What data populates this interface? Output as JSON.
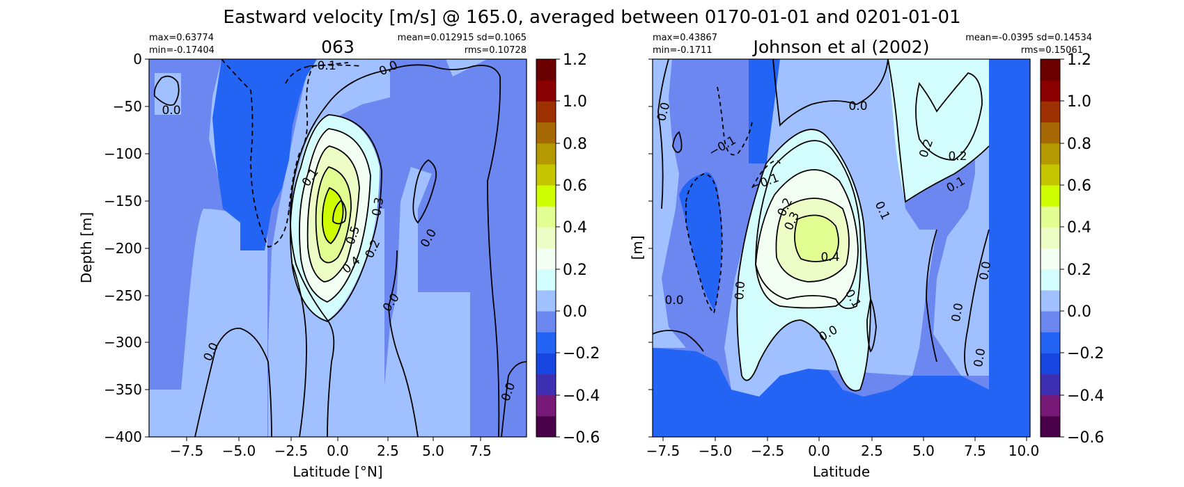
{
  "suptitle": "Eastward velocity [m/s] @ 165.0, averaged between 0170-01-01 and 0201-01-01",
  "colormap": {
    "levels": [
      -0.6,
      -0.5,
      -0.4,
      -0.3,
      -0.2,
      -0.1,
      0.0,
      0.1,
      0.2,
      0.3,
      0.4,
      0.5,
      0.6,
      0.7,
      0.8,
      0.9,
      1.0,
      1.1,
      1.2
    ],
    "colors": [
      "#4a0048",
      "#771a77",
      "#3f2fb3",
      "#1746e0",
      "#2464f5",
      "#6c87f0",
      "#a0c0ff",
      "#d4fdfd",
      "#f4fff4",
      "#eefdc6",
      "#e2fd92",
      "#cefe00",
      "#c6c600",
      "#b49a00",
      "#a76806",
      "#9c3000",
      "#8a0000",
      "#6a0000"
    ],
    "tick_labels": [
      "1.2",
      "1.0",
      "0.8",
      "0.6",
      "0.4",
      "0.2",
      "0.0",
      "−0.2",
      "−0.4",
      "−0.6"
    ]
  },
  "chart_data": [
    {
      "type": "heatmap",
      "title": "063",
      "stats_left": [
        "max=0.63774",
        "min=-0.17404"
      ],
      "stats_right": [
        "mean=0.012915 sd=0.1065",
        "rms=0.10728"
      ],
      "xlabel": "Latitude [°N]",
      "ylabel": "Depth [m]",
      "xlim": [
        -10,
        10
      ],
      "ylim": [
        -400,
        0
      ],
      "x_ticks": [
        "−7.5",
        "−5.0",
        "−2.5",
        "0.0",
        "2.5",
        "5.0",
        "7.5"
      ],
      "y_ticks": [
        "0",
        "−50",
        "−100",
        "−150",
        "−200",
        "−250",
        "−300",
        "−350",
        "−400"
      ],
      "contour_labels": [
        "−0.1",
        "0.0",
        "0.0",
        "0.1",
        "0.2",
        "0.3",
        "0.4",
        "0.5",
        "0.0",
        "0.0",
        "0.0",
        "0.0"
      ]
    },
    {
      "type": "heatmap",
      "title": "Johnson et al (2002)",
      "stats_left": [
        "max=0.43867",
        "min=-0.1711"
      ],
      "stats_right": [
        "mean=-0.0395 sd=0.14534",
        "rms=0.15061"
      ],
      "xlabel": "Latitude",
      "ylabel": "[m]",
      "xlim": [
        -8.2,
        10.2
      ],
      "ylim": [
        -400,
        0
      ],
      "x_ticks": [
        "−7.5",
        "−5.0",
        "−2.5",
        "0.0",
        "2.5",
        "5.0",
        "7.5",
        "10.0"
      ],
      "contour_labels": [
        "0.0",
        "−0.1",
        "−0.1",
        "0.0",
        "0.2",
        "0.2",
        "0.1",
        "0.2",
        "0.3",
        "0.4",
        "0.1",
        "0.1",
        "0.0",
        "0.0",
        "0.0",
        "0.0",
        "0.0",
        "0.0"
      ]
    }
  ]
}
